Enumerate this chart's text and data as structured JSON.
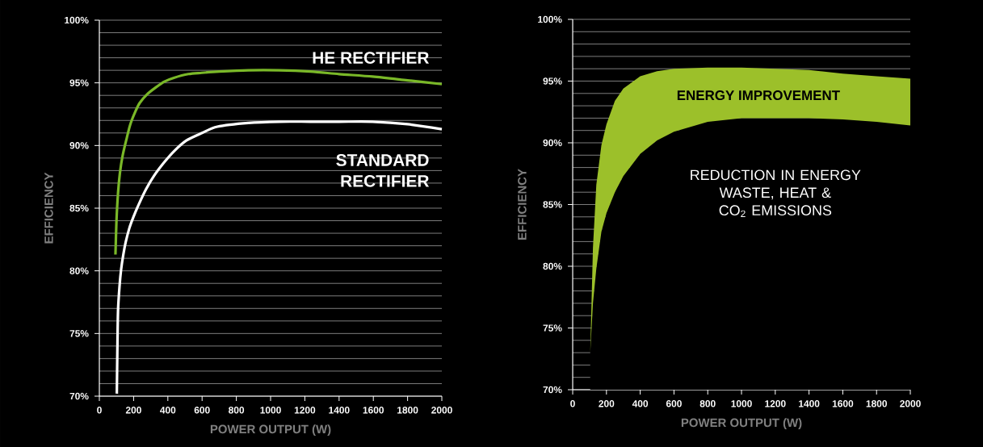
{
  "chart_data": [
    {
      "type": "line",
      "xlabel": "POWER OUTPUT (W)",
      "ylabel": "EFFICIENCY",
      "series": [
        {
          "name": "HE RECTIFIER",
          "color": "#7ab828",
          "x": [
            94,
            100,
            109,
            120,
            136,
            160,
            181,
            210,
            236,
            280,
            326,
            380,
            435,
            520,
            598,
            700,
            870,
            1050,
            1233,
            1400,
            1596,
            1800,
            2000
          ],
          "values": [
            81.3,
            84.0,
            86.2,
            87.8,
            89.2,
            90.6,
            91.7,
            92.7,
            93.4,
            94.1,
            94.6,
            95.1,
            95.4,
            95.7,
            95.8,
            95.9,
            96.0,
            96.0,
            95.9,
            95.7,
            95.5,
            95.2,
            94.9
          ]
        },
        {
          "name": "STANDARD RECTIFIER",
          "color": "#ffffff",
          "x": [
            102,
            105,
            109,
            118,
            127,
            140,
            154,
            175,
            199,
            230,
            272,
            320,
            381,
            440,
            508,
            600,
            689,
            870,
            1050,
            1233,
            1400,
            1596,
            1800,
            2000
          ],
          "values": [
            70.2,
            73.5,
            76.8,
            78.8,
            80.1,
            81.3,
            82.3,
            83.4,
            84.3,
            85.3,
            86.5,
            87.6,
            88.7,
            89.6,
            90.4,
            91.0,
            91.5,
            91.8,
            91.9,
            91.9,
            91.9,
            91.9,
            91.7,
            91.3
          ]
        }
      ],
      "xlim": [
        0,
        2000
      ],
      "ylim": [
        70,
        100
      ],
      "xticks": [
        0,
        200,
        400,
        600,
        800,
        1000,
        1200,
        1400,
        1600,
        1800,
        2000
      ],
      "yticks": [
        {
          "value": 70,
          "label": "70%"
        },
        {
          "value": 75,
          "label": "75%"
        },
        {
          "value": 80,
          "label": "80%"
        },
        {
          "value": 85,
          "label": "85%"
        },
        {
          "value": 90,
          "label": "90%"
        },
        {
          "value": 95,
          "label": "95%"
        },
        {
          "value": 100,
          "label": "100%"
        }
      ],
      "grid": "y"
    },
    {
      "type": "area",
      "xlabel": "POWER OUTPUT (W)",
      "ylabel": "EFFICIENCY",
      "annotations": [
        "ENERGY IMPROVEMENT",
        "REDUCTION IN ENERGY WASTE, HEAT & CO$_{2}$ EMISSIONS"
      ],
      "series": [
        {
          "color": "#9cc02a",
          "x": [
            104,
            120,
            140,
            170,
            200,
            250,
            300,
            400,
            500,
            600,
            800,
            1000,
            1200,
            1400,
            1600,
            1800,
            2000
          ],
          "values": [
            73.0,
            81.5,
            86.6,
            89.8,
            91.5,
            93.4,
            94.4,
            95.4,
            95.8,
            96.0,
            96.1,
            96.1,
            96.0,
            95.9,
            95.6,
            95.4,
            95.2
          ]
        },
        {
          "color": "#000000",
          "x": [
            104,
            120,
            140,
            170,
            200,
            250,
            300,
            400,
            500,
            600,
            800,
            1000,
            1200,
            1400,
            1600,
            1800,
            2000
          ],
          "values": [
            73.0,
            77.0,
            79.8,
            82.8,
            84.3,
            86.0,
            87.3,
            89.1,
            90.2,
            90.9,
            91.7,
            92.0,
            92.0,
            92.0,
            91.9,
            91.7,
            91.4
          ]
        }
      ],
      "xlim": [
        0,
        2000
      ],
      "ylim": [
        70,
        100
      ],
      "xticks": [
        0,
        200,
        400,
        600,
        800,
        1000,
        1200,
        1400,
        1600,
        1800,
        2000
      ],
      "yticks": [
        {
          "value": 70,
          "label": "70%"
        },
        {
          "value": 75,
          "label": "75%"
        },
        {
          "value": 80,
          "label": "80%"
        },
        {
          "value": 85,
          "label": "85%"
        },
        {
          "value": 90,
          "label": "90%"
        },
        {
          "value": 95,
          "label": "95%"
        },
        {
          "value": 100,
          "label": "100%"
        }
      ],
      "grid": "y"
    }
  ]
}
